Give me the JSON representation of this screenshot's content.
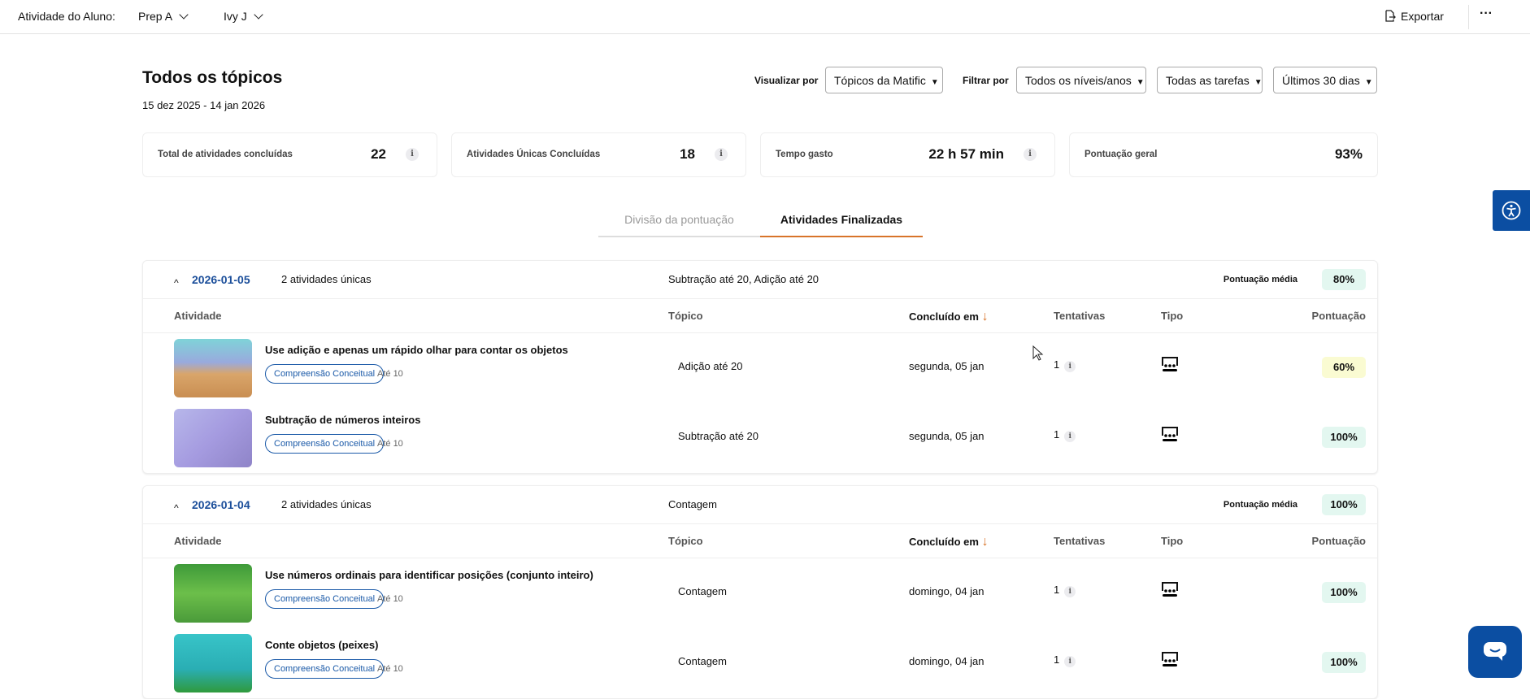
{
  "topbar": {
    "label": "Atividade do Aluno:",
    "class": "Prep A",
    "student": "Ivy J",
    "export": "Exportar",
    "more": "···"
  },
  "header": {
    "title": "Todos os tópicos",
    "date_range": "15 dez 2025 - 14 jan 2026",
    "view_by_label": "Visualizar por",
    "view_by": "Tópicos da Matific",
    "filter_by_label": "Filtrar por",
    "filters": [
      "Todos os níveis/anos",
      "Todas as tarefas",
      "Últimos 30 dias"
    ]
  },
  "stats": [
    {
      "label": "Total de atividades concluídas",
      "value": "22",
      "info": "i"
    },
    {
      "label": "Atividades Únicas Concluídas",
      "value": "18",
      "info": "i"
    },
    {
      "label": "Tempo gasto",
      "value": "22 h 57 min",
      "info": "i"
    },
    {
      "label": "Pontuação geral",
      "value": "93%"
    }
  ],
  "tabs": [
    {
      "label": "Divisão da pontuação",
      "active": false
    },
    {
      "label": "Atividades Finalizadas",
      "active": true
    }
  ],
  "columns": {
    "activity": "Atividade",
    "topic": "Tópico",
    "completed": "Concluído em",
    "tries": "Tentativas",
    "type": "Tipo",
    "score": "Pontuação"
  },
  "avg_label": "Pontuação média",
  "colors": {
    "accent": "#d8742a",
    "link": "#1b4e9a",
    "score_green": "#e3f7f0",
    "score_yellow": "#fafbd2",
    "chat": "#0b4ea2"
  },
  "groups": [
    {
      "date": "2026-01-05",
      "count": "2 atividades únicas",
      "topics": "Subtração até 20, Adição até 20",
      "avg": "80%",
      "rows": [
        {
          "title": "Use adição e apenas um rápido olhar para contar os objetos",
          "tag": "Compreensão Conceitual",
          "level": "Até 10",
          "topic": "Adição até 20",
          "date": "segunda, 05 jan",
          "tries": "1",
          "score": "60%",
          "score_color": "yellow"
        },
        {
          "title": "Subtração de números inteiros",
          "tag": "Compreensão Conceitual",
          "level": "Até 10",
          "topic": "Subtração até 20",
          "date": "segunda, 05 jan",
          "tries": "1",
          "score": "100%",
          "score_color": "green"
        }
      ]
    },
    {
      "date": "2026-01-04",
      "count": "2 atividades únicas",
      "topics": "Contagem",
      "avg": "100%",
      "rows": [
        {
          "title": "Use números ordinais para identificar posições (conjunto inteiro)",
          "tag": "Compreensão Conceitual",
          "level": "Até 10",
          "topic": "Contagem",
          "date": "domingo, 04 jan",
          "tries": "1",
          "score": "100%",
          "score_color": "green"
        },
        {
          "title": "Conte objetos (peixes)",
          "tag": "Compreensão Conceitual",
          "level": "Até 10",
          "topic": "Contagem",
          "date": "domingo, 04 jan",
          "tries": "1",
          "score": "100%",
          "score_color": "green"
        }
      ]
    }
  ]
}
